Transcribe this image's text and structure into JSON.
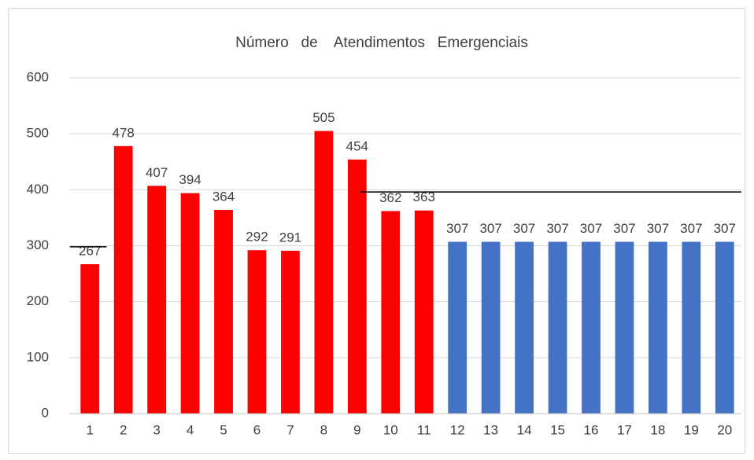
{
  "chart_data": {
    "type": "bar",
    "title": "Número   de    Atendimentos   Emergenciais",
    "categories": [
      "1",
      "2",
      "3",
      "4",
      "5",
      "6",
      "7",
      "8",
      "9",
      "10",
      "11",
      "12",
      "13",
      "14",
      "15",
      "16",
      "17",
      "18",
      "19",
      "20"
    ],
    "values": [
      267,
      478,
      407,
      394,
      364,
      292,
      291,
      505,
      454,
      362,
      363,
      307,
      307,
      307,
      307,
      307,
      307,
      307,
      307,
      307
    ],
    "colors": [
      "#ff0000",
      "#ff0000",
      "#ff0000",
      "#ff0000",
      "#ff0000",
      "#ff0000",
      "#ff0000",
      "#ff0000",
      "#ff0000",
      "#ff0000",
      "#ff0000",
      "#4472c4",
      "#4472c4",
      "#4472c4",
      "#4472c4",
      "#4472c4",
      "#4472c4",
      "#4472c4",
      "#4472c4",
      "#4472c4"
    ],
    "ylim": [
      0,
      600
    ],
    "yticks": [
      0,
      100,
      200,
      300,
      400,
      500,
      600
    ],
    "grid": true,
    "reference_lines": [
      {
        "y": 298,
        "x": [
          0.4,
          1.5
        ]
      },
      {
        "y": 396,
        "x": [
          9.1,
          20.5
        ]
      }
    ]
  }
}
